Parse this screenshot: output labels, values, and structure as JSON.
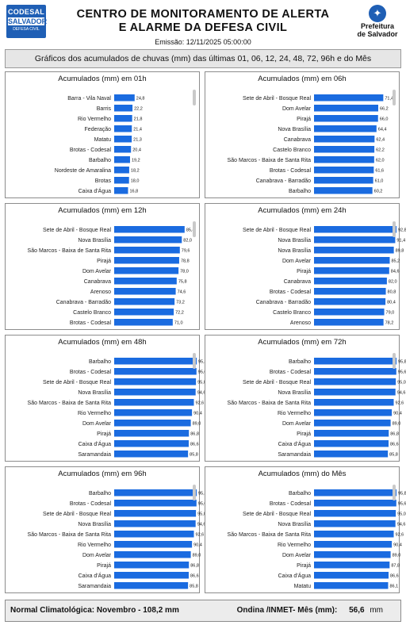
{
  "header": {
    "logo_left": {
      "line1": "CODESAL",
      "line2": "SALVADOR",
      "line3": "DEFESA CIVIL"
    },
    "title_line1": "CENTRO DE MONITORAMENTO DE ALERTA",
    "title_line2": "E ALARME DA DEFESA CIVIL",
    "emissao": "Emissão: 12/11/2025 05:00:00",
    "logo_right": {
      "line1": "Prefeitura",
      "line2": "de Salvador"
    }
  },
  "banner": "Gráficos dos acumulados de chuvas (mm) das últimas 01, 06, 12, 24, 48, 72, 96h e do Mês",
  "colors": {
    "bar": "#1a6be0",
    "panel_border": "#8c8c8c",
    "banner_bg": "#e6e6e6"
  },
  "footer": {
    "left": "Normal Climatológica: Novembro - 108,2 mm",
    "right_label": "Ondina /INMET- Mês (mm):",
    "right_value": "56,6",
    "right_unit": "mm"
  },
  "chart_data": [
    {
      "type": "bar",
      "orientation": "horizontal",
      "title": "Acumulados (mm) em 01h",
      "categories": [
        "Barra - Vila Naval",
        "Barris",
        "Rio Vermelho",
        "Federação",
        "Matatu",
        "Brotas - Codesal",
        "Barbalho",
        "Nordeste de Amaralina",
        "Brotas",
        "Caixa d'Água"
      ],
      "values": [
        24.8,
        22.2,
        21.8,
        21.4,
        21.3,
        20.4,
        19.2,
        18.2,
        18.0,
        16.8
      ],
      "labels": [
        "24,8",
        "22,2",
        "21,8",
        "21,4",
        "21,3",
        "20,4",
        "19,2",
        "18,2",
        "18,0",
        "16,8"
      ],
      "xlim": [
        0,
        100
      ]
    },
    {
      "type": "bar",
      "orientation": "horizontal",
      "title": "Acumulados (mm) em 06h",
      "categories": [
        "Sete de Abril - Bosque Real",
        "Dom Avelar",
        "Pirajá",
        "Nova Brasília",
        "Canabrava",
        "Castelo Branco",
        "São Marcos - Baixa de Santa Rita",
        "Brotas - Codesal",
        "Canabrava - Barradão",
        "Barbalho"
      ],
      "values": [
        71.4,
        66.2,
        66.0,
        64.4,
        62.4,
        62.2,
        62.0,
        61.6,
        61.0,
        60.2
      ],
      "labels": [
        "71,4",
        "66,2",
        "66,0",
        "64,4",
        "62,4",
        "62,2",
        "62,0",
        "61,6",
        "61,0",
        "60,2"
      ],
      "xlim": [
        0,
        85
      ]
    },
    {
      "type": "bar",
      "orientation": "horizontal",
      "title": "Acumulados (mm) em 12h",
      "categories": [
        "Sete de Abril - Bosque Real",
        "Nova Brasília",
        "São Marcos - Baixa de Santa Rita",
        "Pirajá",
        "Dom Avelar",
        "Canabrava",
        "Arenoso",
        "Canabrava - Barradão",
        "Castelo Branco",
        "Brotas - Codesal"
      ],
      "values": [
        85.4,
        82.0,
        79.6,
        78.8,
        78.0,
        75.8,
        74.6,
        73.2,
        72.2,
        71.0
      ],
      "labels": [
        "85,4",
        "82,0",
        "79,6",
        "78,8",
        "78,0",
        "75,8",
        "74,6",
        "73,2",
        "72,2",
        "71,0"
      ],
      "xlim": [
        0,
        100
      ]
    },
    {
      "type": "bar",
      "orientation": "horizontal",
      "title": "Acumulados (mm) em 24h",
      "categories": [
        "Sete de Abril - Bosque Real",
        "Nova Brasília",
        "Nova Brasília",
        "Dom Avelar",
        "Pirajá",
        "Canabrava",
        "Brotas - Codesal",
        "Canabrava - Barradão",
        "Castelo Branco",
        "Arenoso"
      ],
      "values": [
        92.8,
        91.4,
        89.8,
        85.2,
        84.6,
        82.0,
        80.8,
        80.4,
        79.0,
        78.2
      ],
      "labels": [
        "92,8",
        "91,4",
        "89,8",
        "85,2",
        "84,6",
        "82,0",
        "80,8",
        "80,4",
        "79,0",
        "78,2"
      ],
      "xlim": [
        0,
        92.8
      ]
    },
    {
      "type": "bar",
      "orientation": "horizontal",
      "title": "Acumulados (mm) em 48h",
      "categories": [
        "Barbalho",
        "Brotas - Codesal",
        "Sete de Abril - Bosque Real",
        "Nova Brasília",
        "São Marcos - Baixa de Santa Rita",
        "Rio Vermelho",
        "Dom Avelar",
        "Pirajá",
        "Caixa d'Água",
        "Saramandaia"
      ],
      "values": [
        95.8,
        95.6,
        95.0,
        94.6,
        92.6,
        90.4,
        89.0,
        86.8,
        86.6,
        85.8
      ],
      "labels": [
        "95,8",
        "95,6",
        "95,0",
        "94,6",
        "92,6",
        "90,4",
        "89,0",
        "86,8",
        "86,6",
        "85,8"
      ],
      "xlim": [
        0,
        95.8
      ]
    },
    {
      "type": "bar",
      "orientation": "horizontal",
      "title": "Acumulados (mm) em 72h",
      "categories": [
        "Barbalho",
        "Brotas - Codesal",
        "Sete de Abril - Bosque Real",
        "Nova Brasília",
        "São Marcos - Baixa de Santa Rita",
        "Rio Vermelho",
        "Dom Avelar",
        "Pirajá",
        "Caixa d'Água",
        "Saramandaia"
      ],
      "values": [
        95.8,
        95.6,
        95.0,
        94.6,
        92.6,
        90.4,
        89.0,
        86.8,
        86.6,
        85.8
      ],
      "labels": [
        "95,8",
        "95,6",
        "95,0",
        "94,6",
        "92,6",
        "90,4",
        "89,0",
        "86,8",
        "86,6",
        "85,8"
      ],
      "xlim": [
        0,
        95.8
      ]
    },
    {
      "type": "bar",
      "orientation": "horizontal",
      "title": "Acumulados (mm) em 96h",
      "categories": [
        "Barbalho",
        "Brotas - Codesal",
        "Sete de Abril - Bosque Real",
        "Nova Brasília",
        "São Marcos - Baixa de Santa Rita",
        "Rio Vermelho",
        "Dom Avelar",
        "Pirajá",
        "Caixa d'Água",
        "Saramandaia"
      ],
      "values": [
        95.8,
        95.6,
        95.0,
        94.6,
        92.6,
        90.4,
        89.0,
        86.8,
        86.6,
        85.8
      ],
      "labels": [
        "95,8",
        "95,6",
        "95,0",
        "94,6",
        "92,6",
        "90,4",
        "89,0",
        "86,8",
        "86,6",
        "85,8"
      ],
      "xlim": [
        0,
        95.8
      ]
    },
    {
      "type": "bar",
      "orientation": "horizontal",
      "title": "Acumulados (mm) do Mês",
      "categories": [
        "Barbalho",
        "Brotas - Codesal",
        "Sete de Abril - Bosque Real",
        "Nova Brasília",
        "São Marcos - Baixa de Santa Rita",
        "Rio Vermelho",
        "Dom Avelar",
        "Pirajá",
        "Caixa d'Água",
        "Matatu"
      ],
      "values": [
        95.8,
        95.6,
        95.0,
        94.6,
        92.6,
        90.4,
        89.0,
        87.8,
        86.6,
        86.1
      ],
      "labels": [
        "95,8",
        "95,6",
        "95,0",
        "94,6",
        "92,6",
        "90,4",
        "89,0",
        "87,8",
        "86,6",
        "86,1"
      ],
      "xlim": [
        0,
        95.8
      ]
    }
  ]
}
